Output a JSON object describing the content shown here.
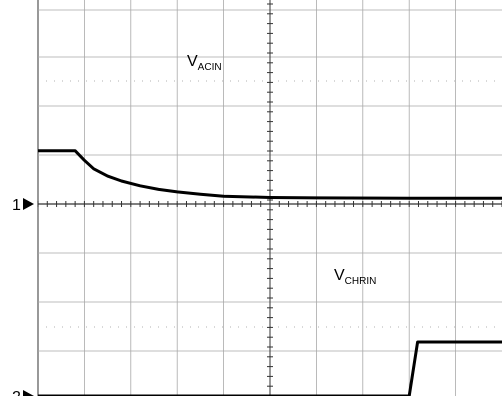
{
  "chart_data": {
    "type": "line",
    "title": "",
    "xlabel": "",
    "ylabel": "",
    "grid": true,
    "xlim": [
      0,
      10
    ],
    "ylim": [
      -4,
      4
    ],
    "channels": [
      {
        "marker": "1",
        "marker_level": -4,
        "label_main": "V",
        "label_sub": "ACIN",
        "x": [
          0,
          0.8,
          1.0,
          1.2,
          1.5,
          1.8,
          2.2,
          2.6,
          3.0,
          3.5,
          4.0,
          5.0,
          6.0,
          8.0,
          10.0
        ],
        "y": [
          -1.8,
          -1.8,
          -2.2,
          -2.55,
          -2.85,
          -3.05,
          -3.25,
          -3.4,
          -3.5,
          -3.6,
          -3.68,
          -3.73,
          -3.75,
          -3.76,
          -3.76
        ]
      },
      {
        "marker": "2",
        "marker_level": -4,
        "label_main": "V",
        "label_sub": "CHRIN",
        "x": [
          0,
          8.0,
          8.18,
          10.0
        ],
        "y": [
          -4,
          -4,
          -1.75,
          -1.75
        ]
      }
    ]
  }
}
